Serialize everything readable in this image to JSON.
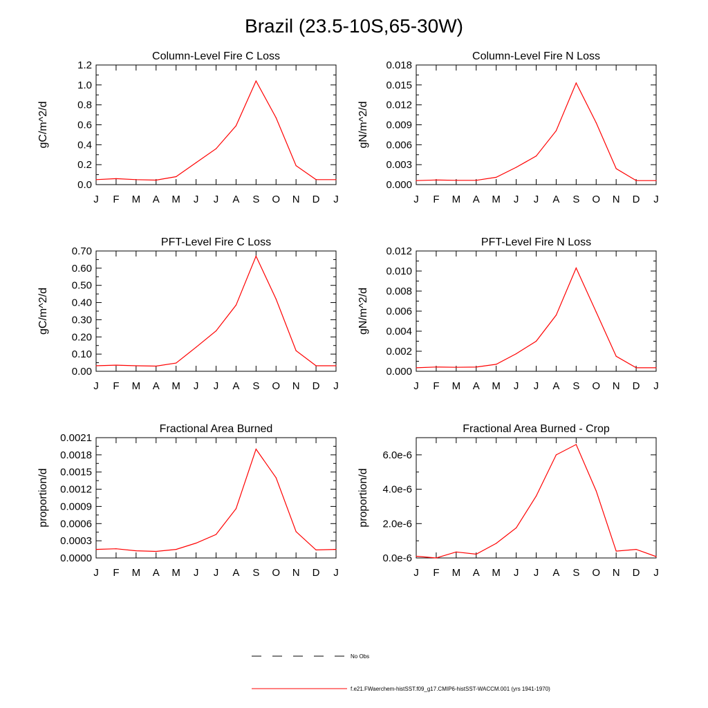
{
  "title": "Brazil (23.5-10S,65-30W)",
  "chart_data": [
    {
      "type": "line",
      "title": "Column-Level Fire C Loss",
      "ylabel": "gC/m^2/d",
      "categories": [
        "J",
        "F",
        "M",
        "A",
        "M",
        "J",
        "J",
        "A",
        "S",
        "O",
        "N",
        "D",
        "J"
      ],
      "ylim": [
        0,
        1.2
      ],
      "yticks": [
        "0.0",
        "0.2",
        "0.4",
        "0.6",
        "0.8",
        "1.0",
        "1.2"
      ],
      "ytick_values": [
        0,
        0.2,
        0.4,
        0.6,
        0.8,
        1.0,
        1.2
      ],
      "series": [
        {
          "values": [
            0.05,
            0.06,
            0.05,
            0.045,
            0.08,
            0.22,
            0.36,
            0.59,
            1.04,
            0.67,
            0.19,
            0.05,
            0.05
          ]
        }
      ]
    },
    {
      "type": "line",
      "title": "Column-Level Fire N Loss",
      "ylabel": "gN/m^2/d",
      "categories": [
        "J",
        "F",
        "M",
        "A",
        "M",
        "J",
        "J",
        "A",
        "S",
        "O",
        "N",
        "D",
        "J"
      ],
      "ylim": [
        0,
        0.018
      ],
      "yticks": [
        "0.000",
        "0.003",
        "0.006",
        "0.009",
        "0.012",
        "0.015",
        "0.018"
      ],
      "ytick_values": [
        0,
        0.003,
        0.006,
        0.009,
        0.012,
        0.015,
        0.018
      ],
      "series": [
        {
          "values": [
            0.0006,
            0.0007,
            0.00065,
            0.00065,
            0.0011,
            0.0026,
            0.0043,
            0.0081,
            0.0153,
            0.0093,
            0.0024,
            0.0006,
            0.0006
          ]
        }
      ]
    },
    {
      "type": "line",
      "title": "PFT-Level Fire C Loss",
      "ylabel": "gC/m^2/d",
      "categories": [
        "J",
        "F",
        "M",
        "A",
        "M",
        "J",
        "J",
        "A",
        "S",
        "O",
        "N",
        "D",
        "J"
      ],
      "ylim": [
        0,
        0.7
      ],
      "yticks": [
        "0.00",
        "0.10",
        "0.20",
        "0.30",
        "0.40",
        "0.50",
        "0.60",
        "0.70"
      ],
      "ytick_values": [
        0,
        0.1,
        0.2,
        0.3,
        0.4,
        0.5,
        0.6,
        0.7
      ],
      "series": [
        {
          "values": [
            0.032,
            0.036,
            0.032,
            0.03,
            0.048,
            0.14,
            0.235,
            0.385,
            0.67,
            0.42,
            0.12,
            0.032,
            0.032
          ]
        }
      ]
    },
    {
      "type": "line",
      "title": "PFT-Level Fire N Loss",
      "ylabel": "gN/m^2/d",
      "categories": [
        "J",
        "F",
        "M",
        "A",
        "M",
        "J",
        "J",
        "A",
        "S",
        "O",
        "N",
        "D",
        "J"
      ],
      "ylim": [
        0,
        0.012
      ],
      "yticks": [
        "0.000",
        "0.002",
        "0.004",
        "0.006",
        "0.008",
        "0.010",
        "0.012"
      ],
      "ytick_values": [
        0,
        0.002,
        0.004,
        0.006,
        0.008,
        0.01,
        0.012
      ],
      "series": [
        {
          "values": [
            0.00035,
            0.00043,
            0.0004,
            0.00042,
            0.0007,
            0.00175,
            0.003,
            0.0056,
            0.0103,
            0.0059,
            0.0015,
            0.00035,
            0.00035
          ]
        }
      ]
    },
    {
      "type": "line",
      "title": "Fractional Area Burned",
      "ylabel": "proportion/d",
      "categories": [
        "J",
        "F",
        "M",
        "A",
        "M",
        "J",
        "J",
        "A",
        "S",
        "O",
        "N",
        "D",
        "J"
      ],
      "ylim": [
        0,
        0.0021
      ],
      "yticks": [
        "0.0000",
        "0.0003",
        "0.0006",
        "0.0009",
        "0.0012",
        "0.0015",
        "0.0018",
        "0.0021"
      ],
      "ytick_values": [
        0,
        0.0003,
        0.0006,
        0.0009,
        0.0012,
        0.0015,
        0.0018,
        0.0021
      ],
      "series": [
        {
          "values": [
            0.00015,
            0.00016,
            0.000125,
            0.000115,
            0.00015,
            0.00026,
            0.00041,
            0.00086,
            0.0019,
            0.0014,
            0.00046,
            0.00014,
            0.00015
          ]
        }
      ]
    },
    {
      "type": "line",
      "title": "Fractional Area Burned - Crop",
      "ylabel": "proportion/d",
      "categories": [
        "J",
        "F",
        "M",
        "A",
        "M",
        "J",
        "J",
        "A",
        "S",
        "O",
        "N",
        "D",
        "J"
      ],
      "ylim": [
        0,
        7e-06
      ],
      "yticks": [
        "0.0e-6",
        "2.0e-6",
        "4.0e-6",
        "6.0e-6"
      ],
      "ytick_values": [
        0,
        2e-06,
        4e-06,
        6e-06
      ],
      "series": [
        {
          "values": [
            1e-07,
            0.0,
            3.5e-07,
            2.2e-07,
            8.5e-07,
            1.75e-06,
            3.6e-06,
            6e-06,
            6.6e-06,
            3.9e-06,
            4e-07,
            5e-07,
            8e-08
          ]
        }
      ]
    }
  ],
  "legend": {
    "items": [
      {
        "label": "No Obs",
        "color": "#000000",
        "style": "dashed"
      },
      {
        "label": "f.e21.FWaerchem-histSST.f09_g17.CMIP6-histSST-WACCM.001 (yrs 1941-1970)",
        "color": "#ff0000",
        "style": "solid"
      }
    ]
  }
}
